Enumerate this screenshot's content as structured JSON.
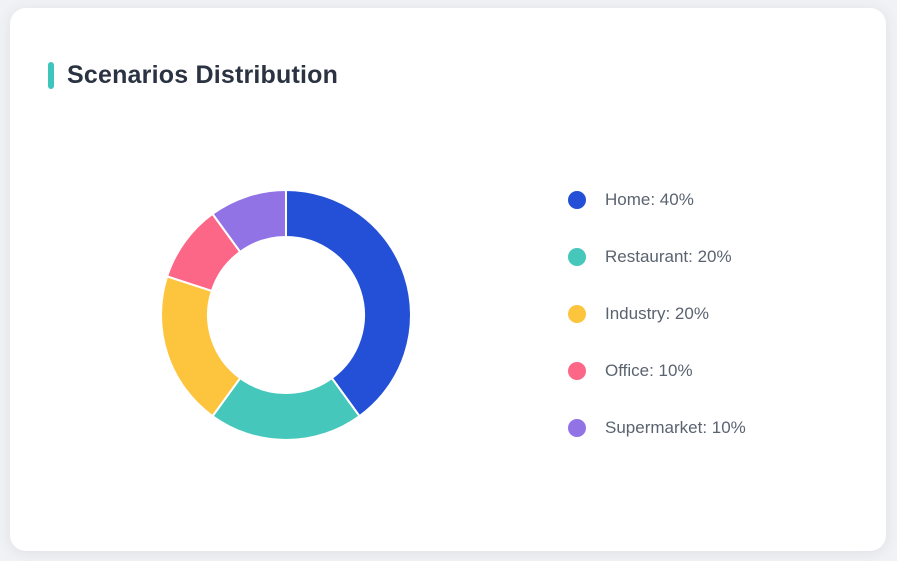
{
  "page": {
    "background_color": "#f1f2f5"
  },
  "card": {
    "title": "Scenarios Distribution",
    "accent_color": "#3fc6bc",
    "background_color": "#ffffff"
  },
  "chart_data": {
    "type": "pie",
    "variant": "donut",
    "title": "Scenarios Distribution",
    "categories": [
      "Home",
      "Restaurant",
      "Industry",
      "Office",
      "Supermarket"
    ],
    "values": [
      40,
      20,
      20,
      10,
      10
    ],
    "unit": "%",
    "colors": [
      "#2350d7",
      "#45c8bb",
      "#fdc43e",
      "#fc6787",
      "#9173e6"
    ],
    "start_angle_deg": 0,
    "direction": "clockwise",
    "inner_radius_ratio": 0.62,
    "segment_gap_color": "#ffffff",
    "legend_position": "right",
    "legend_labels": [
      "Home: 40%",
      "Restaurant: 20%",
      "Industry: 20%",
      "Office: 10%",
      "Supermarket: 10%"
    ]
  }
}
